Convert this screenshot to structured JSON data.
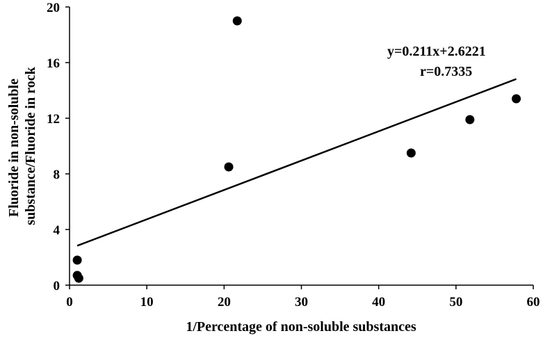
{
  "chart_data": {
    "type": "scatter",
    "title": "",
    "xlabel": "1/Percentage of non-soluble substances",
    "ylabel_lines": [
      "Fluoride in non-soluble",
      "substance/Fluoride in rock"
    ],
    "xlim": [
      0,
      60
    ],
    "ylim": [
      0,
      20
    ],
    "xticks": [
      "0",
      "10",
      "20",
      "30",
      "40",
      "50",
      "60"
    ],
    "yticks": [
      "0",
      "4",
      "8",
      "12",
      "16",
      "20"
    ],
    "grid": false,
    "legend": "none",
    "series": [
      {
        "points": [
          {
            "x": 1.0,
            "y": 1.8
          },
          {
            "x": 1.0,
            "y": 0.7
          },
          {
            "x": 1.2,
            "y": 0.5
          },
          {
            "x": 20.6,
            "y": 8.5
          },
          {
            "x": 21.7,
            "y": 19.0
          },
          {
            "x": 44.2,
            "y": 9.5
          },
          {
            "x": 51.8,
            "y": 11.9
          },
          {
            "x": 57.8,
            "y": 13.4
          }
        ]
      }
    ],
    "fit_line": {
      "slope": 0.211,
      "intercept": 2.6221,
      "x_range": [
        1.0,
        57.8
      ]
    },
    "annotations": [
      "y=0.211x+2.6221",
      "r=0.7335"
    ],
    "colors": {
      "points": "#000000",
      "line": "#000000",
      "axes": "#000000"
    }
  }
}
